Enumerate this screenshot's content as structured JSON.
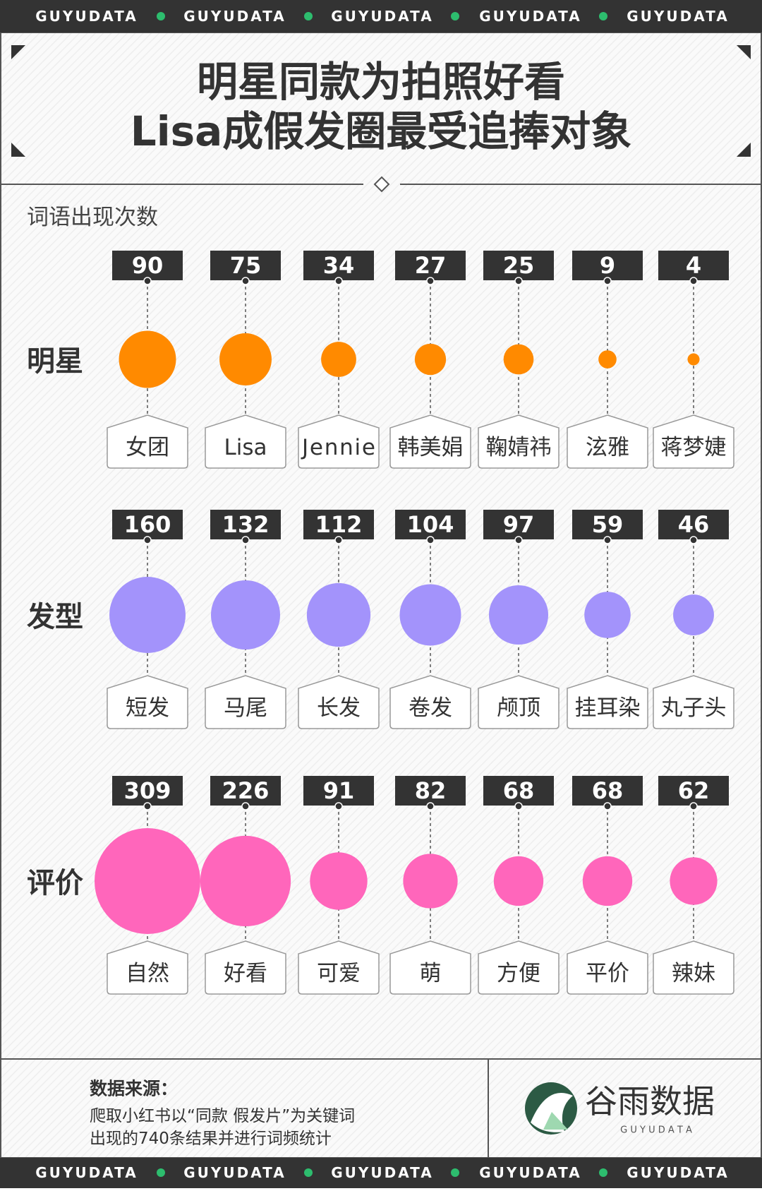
{
  "banner": "GUYUDATA",
  "title_lines": [
    "明星同款为拍照好看",
    "Lisa成假发圈最受追捧对象"
  ],
  "measure_label": "词语出现次数",
  "chart_data": [
    {
      "type": "bubble",
      "title": "明星",
      "categories": [
        "女团",
        "Lisa",
        "Jennie",
        "韩美娟",
        "鞠婧祎",
        "泫雅",
        "蒋梦婕"
      ],
      "values": [
        90,
        75,
        34,
        27,
        25,
        9,
        4
      ],
      "color": "#ff8a00"
    },
    {
      "type": "bubble",
      "title": "发型",
      "categories": [
        "短发",
        "马尾",
        "长发",
        "卷发",
        "颅顶",
        "挂耳染",
        "丸子头"
      ],
      "values": [
        160,
        132,
        112,
        104,
        97,
        59,
        46
      ],
      "color": "#a393fb"
    },
    {
      "type": "bubble",
      "title": "评价",
      "categories": [
        "自然",
        "好看",
        "可爱",
        "萌",
        "方便",
        "平价",
        "辣妹"
      ],
      "values": [
        309,
        226,
        91,
        82,
        68,
        68,
        62
      ],
      "color": "#ff66bb"
    }
  ],
  "source": {
    "heading": "数据来源：",
    "lines": [
      "爬取小红书以“同款 假发片”为关键词",
      "出现的740条结果并进行词频统计"
    ]
  },
  "logo": {
    "name": "谷雨数据",
    "sub": "G U Y U D A T A"
  }
}
